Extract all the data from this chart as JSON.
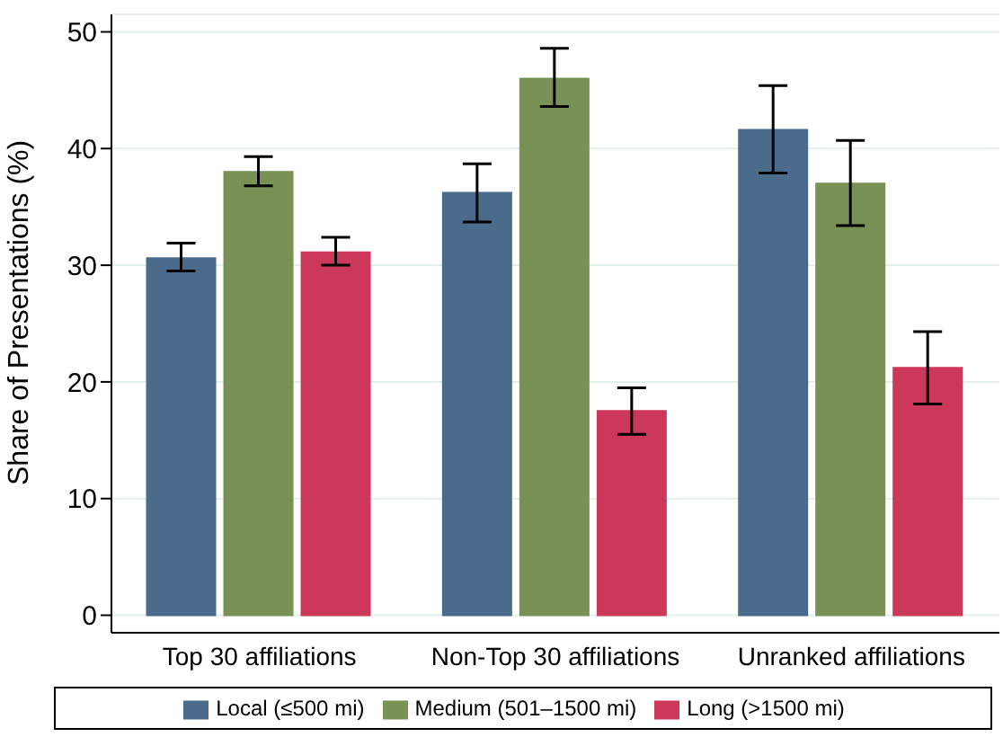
{
  "chart_data": {
    "type": "bar",
    "ylabel": "Share of Presentations (%)",
    "categories": [
      "Top 30 affiliations",
      "Non-Top 30 affiliations",
      "Unranked affiliations"
    ],
    "series": [
      {
        "name": "Local (≤500 mi)",
        "color": "#4a6b8c",
        "values": [
          30.6,
          36.2,
          41.6
        ],
        "errors": [
          [
            29.5,
            31.9
          ],
          [
            33.7,
            38.7
          ],
          [
            37.9,
            45.4
          ]
        ]
      },
      {
        "name": "Medium (501–1500 mi)",
        "color": "#7a9155",
        "values": [
          38.0,
          46.0,
          37.0
        ],
        "errors": [
          [
            36.8,
            39.3
          ],
          [
            43.6,
            48.6
          ],
          [
            33.4,
            40.7
          ]
        ]
      },
      {
        "name": "Long (>1500 mi)",
        "color": "#cc385a",
        "values": [
          31.1,
          17.5,
          21.2
        ],
        "errors": [
          [
            30.0,
            32.4
          ],
          [
            15.5,
            19.5
          ],
          [
            18.1,
            24.3
          ]
        ]
      }
    ],
    "ylim": [
      -1.5,
      51.5
    ],
    "yticks": [
      0,
      10,
      20,
      30,
      40,
      50
    ],
    "grid": "y",
    "legend": "bottom"
  }
}
